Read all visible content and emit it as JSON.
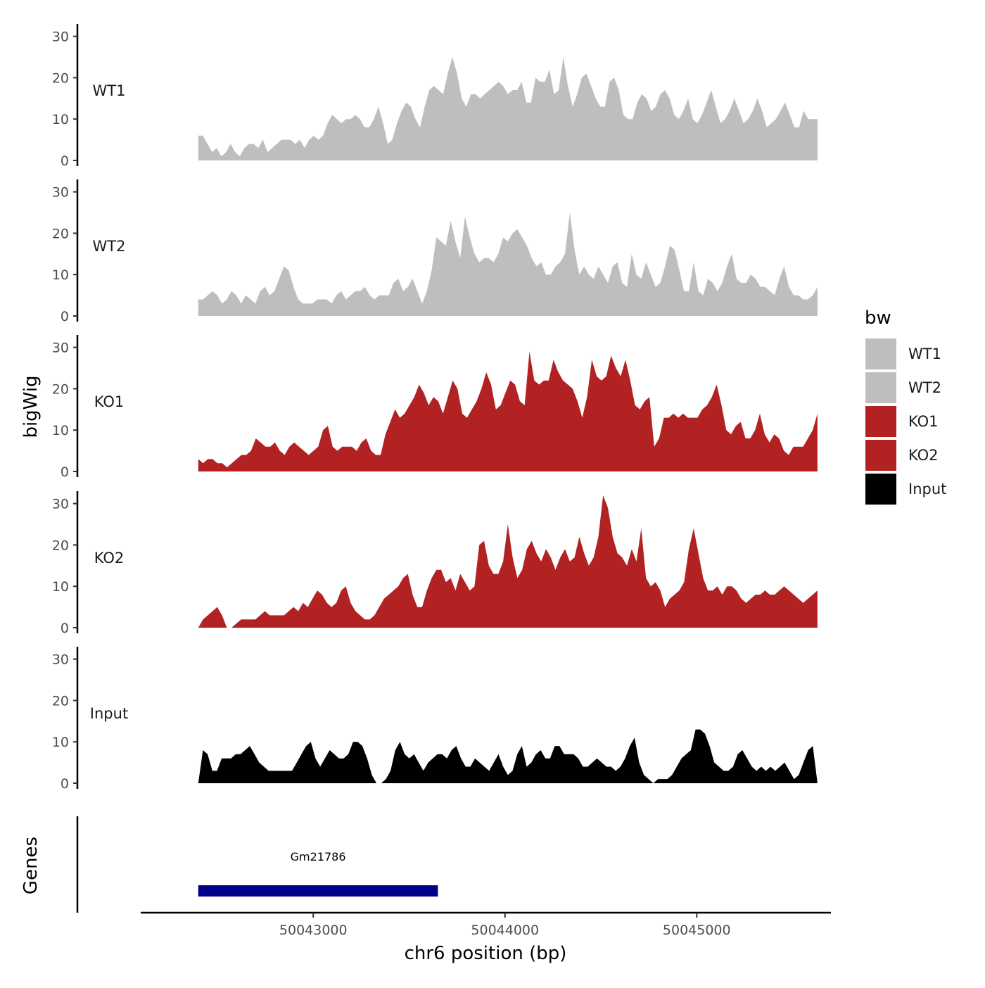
{
  "chart_data": {
    "type": "area",
    "title": "",
    "ylabel": "bigWig",
    "xlabel": "chr6 position (bp)",
    "genes_label": "Genes",
    "ylim": [
      0,
      33
    ],
    "y_ticks": [
      0,
      10,
      20,
      30
    ],
    "x_range": [
      50042100,
      50045700
    ],
    "x_ticks": [
      50043000,
      50044000,
      50045000
    ],
    "x_tick_labels": [
      "50043000",
      "50044000",
      "50045000"
    ],
    "legend": {
      "title": "bw",
      "position": "right",
      "entries": [
        {
          "label": "WT1",
          "color": "#bebebe"
        },
        {
          "label": "WT2",
          "color": "#bebebe"
        },
        {
          "label": "KO1",
          "color": "#b22222"
        },
        {
          "label": "KO2",
          "color": "#b22222"
        },
        {
          "label": "Input",
          "color": "#000000"
        }
      ]
    },
    "genes": [
      {
        "name": "Gm21786",
        "start": 50042400,
        "end": 50043650,
        "color": "#00008b"
      }
    ],
    "series": [
      {
        "name": "WT1",
        "color": "#bebebe",
        "x_start": 50042400,
        "x_end": 50045630,
        "values": [
          6,
          6,
          4,
          2,
          3,
          1,
          2,
          4,
          2,
          1,
          3,
          4,
          4,
          3,
          5,
          2,
          3,
          4,
          5,
          5,
          5,
          4,
          5,
          3,
          5,
          6,
          5,
          6,
          9,
          11,
          10,
          9,
          10,
          10,
          11,
          10,
          8,
          8,
          10,
          13,
          9,
          4,
          5,
          9,
          12,
          14,
          13,
          10,
          8,
          13,
          17,
          18,
          17,
          16,
          21,
          25,
          21,
          15,
          13,
          16,
          16,
          15,
          16,
          17,
          18,
          19,
          18,
          16,
          17,
          17,
          19,
          14,
          14,
          20,
          19,
          19,
          22,
          16,
          17,
          25,
          18,
          13,
          16,
          20,
          21,
          18,
          15,
          13,
          13,
          19,
          20,
          17,
          11,
          10,
          10,
          14,
          16,
          15,
          12,
          13,
          16,
          17,
          15,
          11,
          10,
          12,
          15,
          10,
          9,
          11,
          14,
          17,
          13,
          9,
          10,
          12,
          15,
          12,
          9,
          10,
          12,
          15,
          12,
          8,
          9,
          10,
          12,
          14,
          11,
          8,
          8,
          12,
          10,
          10,
          10
        ]
      },
      {
        "name": "WT2",
        "color": "#bebebe",
        "x_start": 50042400,
        "x_end": 50045630,
        "values": [
          4,
          4,
          5,
          6,
          5,
          3,
          4,
          6,
          5,
          3,
          5,
          4,
          3,
          6,
          7,
          5,
          6,
          9,
          12,
          11,
          7,
          4,
          3,
          3,
          3,
          4,
          4,
          4,
          3,
          5,
          6,
          4,
          5,
          6,
          6,
          7,
          5,
          4,
          5,
          5,
          5,
          8,
          9,
          6,
          7,
          9,
          6,
          3,
          6,
          11,
          19,
          18,
          17,
          23,
          18,
          14,
          24,
          19,
          15,
          13,
          14,
          14,
          13,
          15,
          19,
          18,
          20,
          21,
          19,
          17,
          14,
          12,
          13,
          10,
          10,
          12,
          13,
          15,
          25,
          16,
          10,
          12,
          10,
          9,
          12,
          10,
          8,
          12,
          13,
          8,
          7,
          15,
          10,
          9,
          13,
          10,
          7,
          8,
          12,
          17,
          16,
          11,
          6,
          6,
          13,
          6,
          5,
          9,
          8,
          6,
          8,
          12,
          15,
          9,
          8,
          8,
          10,
          9,
          7,
          7,
          6,
          5,
          9,
          12,
          7,
          5,
          5,
          4,
          4,
          5,
          7
        ]
      },
      {
        "name": "KO1",
        "color": "#b22222",
        "x_start": 50042400,
        "x_end": 50045630,
        "values": [
          3,
          2,
          3,
          3,
          2,
          2,
          1,
          2,
          3,
          4,
          4,
          5,
          8,
          7,
          6,
          6,
          7,
          5,
          4,
          6,
          7,
          6,
          5,
          4,
          5,
          6,
          10,
          11,
          6,
          5,
          6,
          6,
          6,
          5,
          7,
          8,
          5,
          4,
          4,
          9,
          12,
          15,
          13,
          14,
          16,
          18,
          21,
          19,
          16,
          18,
          17,
          14,
          18,
          22,
          20,
          14,
          13,
          15,
          17,
          20,
          24,
          21,
          15,
          16,
          19,
          22,
          21,
          17,
          16,
          29,
          22,
          21,
          22,
          22,
          27,
          24,
          22,
          21,
          20,
          17,
          13,
          18,
          27,
          23,
          22,
          23,
          28,
          25,
          23,
          27,
          22,
          16,
          15,
          17,
          18,
          6,
          8,
          13,
          13,
          14,
          13,
          14,
          13,
          13,
          13,
          15,
          16,
          18,
          21,
          16,
          10,
          9,
          11,
          12,
          8,
          8,
          10,
          14,
          9,
          7,
          9,
          8,
          5,
          4,
          6,
          6,
          6,
          8,
          10,
          14
        ]
      },
      {
        "name": "KO2",
        "color": "#b22222",
        "x_start": 50042400,
        "x_end": 50045630,
        "values": [
          0,
          2,
          3,
          4,
          5,
          3,
          0,
          0,
          1,
          2,
          2,
          2,
          2,
          3,
          4,
          3,
          3,
          3,
          3,
          4,
          5,
          4,
          6,
          5,
          7,
          9,
          8,
          6,
          5,
          6,
          9,
          10,
          6,
          4,
          3,
          2,
          2,
          3,
          5,
          7,
          8,
          9,
          10,
          12,
          13,
          8,
          5,
          5,
          9,
          12,
          14,
          14,
          11,
          12,
          9,
          13,
          11,
          9,
          10,
          20,
          21,
          15,
          13,
          13,
          16,
          25,
          17,
          12,
          14,
          19,
          21,
          18,
          16,
          19,
          17,
          14,
          17,
          19,
          16,
          17,
          22,
          18,
          15,
          17,
          22,
          32,
          29,
          22,
          18,
          17,
          15,
          19,
          16,
          24,
          12,
          10,
          11,
          9,
          5,
          7,
          8,
          9,
          11,
          19,
          24,
          18,
          12,
          9,
          9,
          10,
          8,
          10,
          10,
          9,
          7,
          6,
          7,
          8,
          8,
          9,
          8,
          8,
          9,
          10,
          9,
          8,
          7,
          6,
          7,
          8,
          9
        ]
      },
      {
        "name": "Input",
        "color": "#000000",
        "x_start": 50042400,
        "x_end": 50045630,
        "values": [
          0,
          8,
          7,
          3,
          3,
          6,
          6,
          6,
          7,
          7,
          8,
          9,
          7,
          5,
          4,
          3,
          3,
          3,
          3,
          3,
          3,
          5,
          7,
          9,
          10,
          6,
          4,
          6,
          8,
          7,
          6,
          6,
          7,
          10,
          10,
          9,
          6,
          2,
          0,
          0,
          1,
          3,
          8,
          10,
          7,
          6,
          7,
          5,
          3,
          5,
          6,
          7,
          7,
          6,
          8,
          9,
          6,
          4,
          4,
          6,
          5,
          4,
          3,
          5,
          7,
          4,
          2,
          3,
          7,
          9,
          4,
          5,
          7,
          8,
          6,
          6,
          9,
          9,
          7,
          7,
          7,
          6,
          4,
          4,
          5,
          6,
          5,
          4,
          4,
          3,
          4,
          6,
          9,
          11,
          5,
          2,
          1,
          0,
          1,
          1,
          1,
          2,
          4,
          6,
          7,
          8,
          13,
          13,
          12,
          9,
          5,
          4,
          3,
          3,
          4,
          7,
          8,
          6,
          4,
          3,
          4,
          3,
          4,
          3,
          4,
          5,
          3,
          1,
          2,
          5,
          8,
          9,
          0
        ]
      }
    ]
  }
}
